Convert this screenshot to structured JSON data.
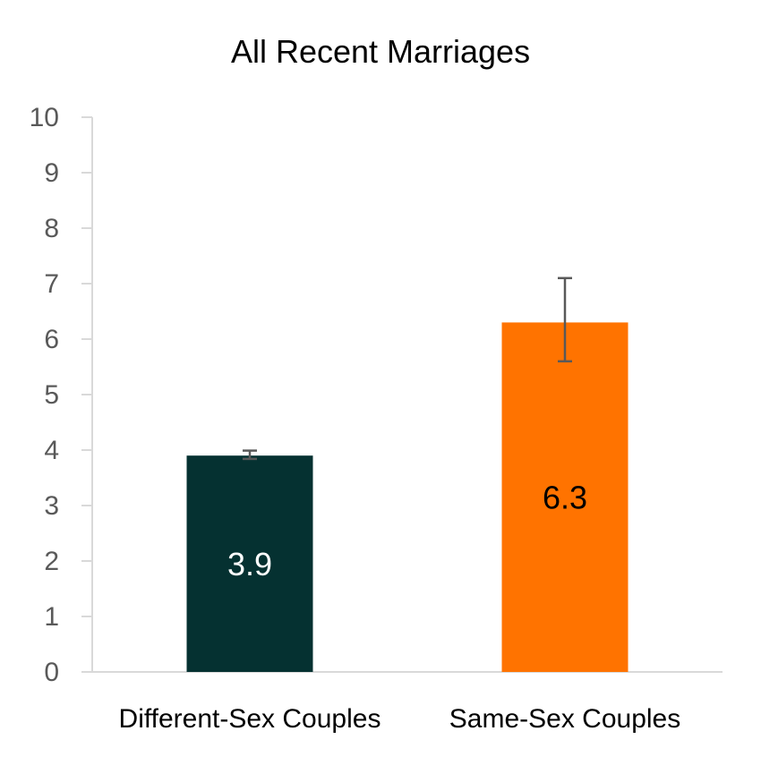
{
  "chart_data": {
    "type": "bar",
    "title": "All Recent Marriages",
    "categories": [
      "Different-Sex Couples",
      "Same-Sex Couples"
    ],
    "values": [
      3.9,
      6.3
    ],
    "display_values": [
      "3.9",
      "6.3"
    ],
    "error_bars": [
      {
        "low": 3.84,
        "high": 3.99
      },
      {
        "low": 5.6,
        "high": 7.1
      }
    ],
    "colors": [
      "#053131",
      "#ff7300"
    ],
    "data_label_colors": [
      "#ffffff",
      "#000000"
    ],
    "xlabel": "",
    "ylabel": "",
    "ylim": [
      0,
      10
    ],
    "yticks": [
      0,
      1,
      2,
      3,
      4,
      5,
      6,
      7,
      8,
      9,
      10
    ],
    "grid": false,
    "legend": false
  }
}
